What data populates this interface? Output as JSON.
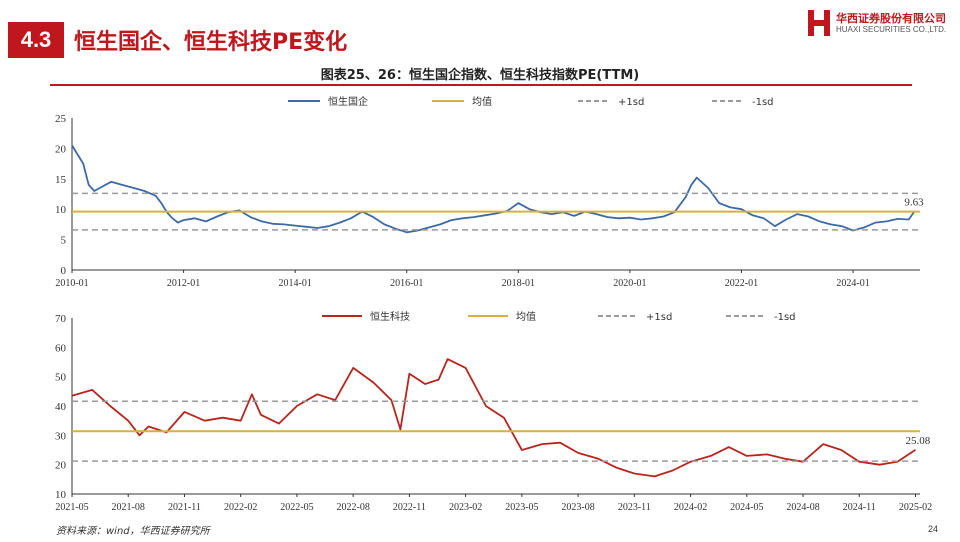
{
  "header": {
    "section_number": "4.3",
    "title": "恒生国企、恒生科技PE变化"
  },
  "logo": {
    "name_cn": "华西证券股份有限公司",
    "name_en": "HUAXI SECURITIES CO.,LTD.",
    "brand_color": "#c0161d"
  },
  "figure_title": "图表25、26：恒生国企指数、恒生科技指数PE(TTM)",
  "source": "资料来源：wind，华西证券研究所",
  "page_number": "24",
  "chart_data": [
    {
      "type": "line",
      "title": "",
      "ylim": [
        0,
        25
      ],
      "yticks": [
        0,
        5,
        10,
        15,
        20,
        25
      ],
      "xlim": [
        2010.0,
        2025.2
      ],
      "xticks": [
        2010.0,
        2012.0,
        2014.0,
        2016.0,
        2018.0,
        2020.0,
        2022.0,
        2024.0
      ],
      "xtick_labels": [
        "2010-01",
        "2012-01",
        "2014-01",
        "2016-01",
        "2018-01",
        "2020-01",
        "2022-01",
        "2024-01"
      ],
      "legend_position": "top",
      "grid": false,
      "last_label": "9.63",
      "series": [
        {
          "name": "恒生国企",
          "color": "#3d6aa6",
          "kind": "line",
          "x": [
            2010.0,
            2010.1,
            2010.2,
            2010.3,
            2010.4,
            2010.5,
            2010.7,
            2010.9,
            2011.1,
            2011.3,
            2011.5,
            2011.6,
            2011.7,
            2011.8,
            2011.9,
            2012.0,
            2012.2,
            2012.4,
            2012.6,
            2012.8,
            2013.0,
            2013.2,
            2013.4,
            2013.6,
            2013.8,
            2014.0,
            2014.2,
            2014.4,
            2014.6,
            2014.8,
            2015.0,
            2015.2,
            2015.4,
            2015.6,
            2015.8,
            2016.0,
            2016.2,
            2016.4,
            2016.6,
            2016.8,
            2017.0,
            2017.2,
            2017.4,
            2017.6,
            2017.8,
            2018.0,
            2018.2,
            2018.4,
            2018.6,
            2018.8,
            2019.0,
            2019.2,
            2019.4,
            2019.6,
            2019.8,
            2020.0,
            2020.2,
            2020.4,
            2020.6,
            2020.8,
            2021.0,
            2021.1,
            2021.2,
            2021.4,
            2021.6,
            2021.8,
            2022.0,
            2022.2,
            2022.4,
            2022.6,
            2022.8,
            2023.0,
            2023.2,
            2023.4,
            2023.6,
            2023.8,
            2024.0,
            2024.2,
            2024.4,
            2024.6,
            2024.8,
            2025.0,
            2025.1
          ],
          "values": [
            20.5,
            19.0,
            17.5,
            14.0,
            13.0,
            13.5,
            14.5,
            14.0,
            13.5,
            13.0,
            12.2,
            11.0,
            9.5,
            8.5,
            7.8,
            8.2,
            8.5,
            8.0,
            8.8,
            9.5,
            9.8,
            8.7,
            8.0,
            7.6,
            7.5,
            7.3,
            7.1,
            6.9,
            7.2,
            7.8,
            8.5,
            9.6,
            8.7,
            7.5,
            6.8,
            6.2,
            6.5,
            7.0,
            7.5,
            8.2,
            8.5,
            8.7,
            9.0,
            9.3,
            9.7,
            11.0,
            10.0,
            9.5,
            9.2,
            9.5,
            8.9,
            9.6,
            9.2,
            8.7,
            8.5,
            8.6,
            8.3,
            8.5,
            8.8,
            9.5,
            12.0,
            14.0,
            15.2,
            13.5,
            11.0,
            10.3,
            10.0,
            9.0,
            8.5,
            7.2,
            8.3,
            9.2,
            8.8,
            8.0,
            7.5,
            7.2,
            6.5,
            7.0,
            7.8,
            8.0,
            8.4,
            8.3,
            9.63
          ]
        },
        {
          "name": "均值",
          "color": "#d4b142",
          "kind": "hline",
          "value": 9.6
        },
        {
          "name": "+1sd",
          "color": "#9a9a9a",
          "kind": "hline-dashed",
          "value": 12.6
        },
        {
          "name": "-1sd",
          "color": "#9a9a9a",
          "kind": "hline-dashed",
          "value": 6.6
        }
      ]
    },
    {
      "type": "line",
      "title": "",
      "ylim": [
        10,
        70
      ],
      "yticks": [
        10,
        20,
        30,
        40,
        50,
        60,
        70
      ],
      "xlim": [
        2021.33,
        2025.1
      ],
      "xticks": [
        2021.33,
        2021.58,
        2021.83,
        2022.08,
        2022.33,
        2022.58,
        2022.83,
        2023.08,
        2023.33,
        2023.58,
        2023.83,
        2024.08,
        2024.33,
        2024.58,
        2024.83,
        2025.08
      ],
      "xtick_labels": [
        "2021-05",
        "2021-08",
        "2021-11",
        "2022-02",
        "2022-05",
        "2022-08",
        "2022-11",
        "2023-02",
        "2023-05",
        "2023-08",
        "2023-11",
        "2024-02",
        "2024-05",
        "2024-08",
        "2024-11",
        "2025-02"
      ],
      "legend_position": "top",
      "grid": false,
      "last_label": "25.08",
      "series": [
        {
          "name": "恒生科技",
          "color": "#b7251c",
          "kind": "line",
          "x": [
            2021.33,
            2021.42,
            2021.5,
            2021.58,
            2021.63,
            2021.67,
            2021.75,
            2021.83,
            2021.92,
            2022.0,
            2022.08,
            2022.13,
            2022.17,
            2022.25,
            2022.33,
            2022.42,
            2022.5,
            2022.58,
            2022.67,
            2022.75,
            2022.79,
            2022.83,
            2022.9,
            2022.96,
            2023.0,
            2023.08,
            2023.17,
            2023.25,
            2023.33,
            2023.42,
            2023.5,
            2023.58,
            2023.67,
            2023.75,
            2023.83,
            2023.92,
            2024.0,
            2024.08,
            2024.17,
            2024.25,
            2024.33,
            2024.42,
            2024.5,
            2024.58,
            2024.67,
            2024.75,
            2024.83,
            2024.92,
            2025.0,
            2025.08
          ],
          "values": [
            43.5,
            45.5,
            40.0,
            35.0,
            30.0,
            33.0,
            31.0,
            38.0,
            35.0,
            36.0,
            35.0,
            44.0,
            37.0,
            34.0,
            40.0,
            44.0,
            42.0,
            53.0,
            48.0,
            42.0,
            32.0,
            51.0,
            47.5,
            49.0,
            56.0,
            53.0,
            40.0,
            36.0,
            25.0,
            27.0,
            27.5,
            24.0,
            22.0,
            19.0,
            17.0,
            16.0,
            18.0,
            21.0,
            23.0,
            26.0,
            23.0,
            23.5,
            22.0,
            21.0,
            27.0,
            25.0,
            21.0,
            20.0,
            21.0,
            25.08
          ]
        },
        {
          "name": "均值",
          "color": "#d4b142",
          "kind": "hline",
          "value": 31.4
        },
        {
          "name": "+1sd",
          "color": "#9a9a9a",
          "kind": "hline-dashed",
          "value": 41.6
        },
        {
          "name": "-1sd",
          "color": "#9a9a9a",
          "kind": "hline-dashed",
          "value": 21.2
        }
      ]
    }
  ]
}
